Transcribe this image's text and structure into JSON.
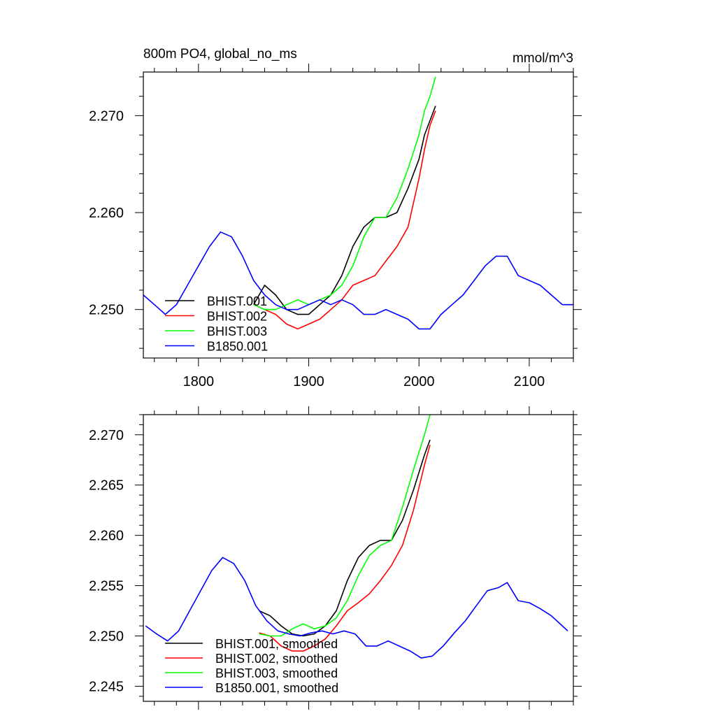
{
  "chart_data": [
    {
      "type": "line",
      "title": "800m PO4, global_no_ms",
      "units": "mmol/m^3",
      "xlim": [
        1750,
        2140
      ],
      "ylim": [
        2.245,
        2.2745
      ],
      "xticks": [
        1800,
        1900,
        2000,
        2100
      ],
      "xtick_labels": [
        "1800",
        "1900",
        "2000",
        "2100"
      ],
      "yticks": [
        2.25,
        2.26,
        2.27
      ],
      "ytick_labels": [
        "2.250",
        "2.260",
        "2.270"
      ],
      "grid": false,
      "legend_position": "bottom-left",
      "series": [
        {
          "name": "BHIST.001",
          "color": "#000000",
          "x": [
            1850,
            1860,
            1870,
            1880,
            1890,
            1900,
            1910,
            1920,
            1930,
            1940,
            1950,
            1960,
            1970,
            1980,
            1990,
            2000,
            2005,
            2010,
            2015
          ],
          "y": [
            2.2505,
            2.2525,
            2.2515,
            2.25,
            2.2495,
            2.2495,
            2.2505,
            2.2515,
            2.2535,
            2.2565,
            2.2585,
            2.2595,
            2.2595,
            2.26,
            2.2625,
            2.2655,
            2.268,
            2.2695,
            2.271
          ]
        },
        {
          "name": "BHIST.002",
          "color": "#ff0000",
          "x": [
            1850,
            1860,
            1870,
            1880,
            1890,
            1900,
            1910,
            1920,
            1930,
            1940,
            1950,
            1960,
            1970,
            1980,
            1990,
            2000,
            2005,
            2010,
            2015
          ],
          "y": [
            2.2505,
            2.25,
            2.2495,
            2.2485,
            2.248,
            2.2485,
            2.249,
            2.25,
            2.251,
            2.2525,
            2.253,
            2.2535,
            2.255,
            2.2565,
            2.2585,
            2.2635,
            2.2665,
            2.269,
            2.2705
          ]
        },
        {
          "name": "BHIST.003",
          "color": "#00ff00",
          "x": [
            1850,
            1860,
            1870,
            1880,
            1890,
            1900,
            1910,
            1920,
            1930,
            1940,
            1950,
            1960,
            1970,
            1980,
            1990,
            2000,
            2005,
            2010,
            2015
          ],
          "y": [
            2.2505,
            2.25,
            2.25,
            2.2505,
            2.251,
            2.2505,
            2.251,
            2.2515,
            2.2525,
            2.2545,
            2.2575,
            2.2595,
            2.2595,
            2.2615,
            2.2645,
            2.268,
            2.2705,
            2.272,
            2.274
          ]
        },
        {
          "name": "B1850.001",
          "color": "#0000ff",
          "x": [
            1750,
            1760,
            1770,
            1780,
            1790,
            1800,
            1810,
            1820,
            1830,
            1840,
            1850,
            1860,
            1870,
            1880,
            1890,
            1900,
            1910,
            1920,
            1930,
            1940,
            1950,
            1960,
            1970,
            1980,
            1990,
            2000,
            2010,
            2020,
            2030,
            2040,
            2050,
            2060,
            2070,
            2080,
            2090,
            2100,
            2110,
            2120,
            2130,
            2140
          ],
          "y": [
            2.2515,
            2.2505,
            2.2495,
            2.2505,
            2.2525,
            2.2545,
            2.2565,
            2.258,
            2.2575,
            2.2555,
            2.253,
            2.2515,
            2.2505,
            2.25,
            2.25,
            2.2505,
            2.251,
            2.2505,
            2.251,
            2.2505,
            2.2495,
            2.2495,
            2.25,
            2.2495,
            2.249,
            2.248,
            2.248,
            2.2495,
            2.2505,
            2.2515,
            2.253,
            2.2545,
            2.2555,
            2.2555,
            2.2535,
            2.253,
            2.2525,
            2.2515,
            2.2505,
            2.2505
          ]
        }
      ]
    },
    {
      "type": "line",
      "title": "",
      "units": "",
      "xlim": [
        1750,
        2140
      ],
      "ylim": [
        2.2435,
        2.272
      ],
      "xticks": [
        1800,
        1900,
        2000,
        2100
      ],
      "xtick_labels": [
        "",
        "",
        "",
        ""
      ],
      "yticks": [
        2.245,
        2.25,
        2.255,
        2.26,
        2.265,
        2.27
      ],
      "ytick_labels": [
        "2.245",
        "2.250",
        "2.255",
        "2.260",
        "2.265",
        "2.270"
      ],
      "grid": false,
      "legend_position": "bottom-left",
      "series": [
        {
          "name": "BHIST.001, smoothed",
          "color": "#000000",
          "x": [
            1855,
            1865,
            1875,
            1885,
            1895,
            1905,
            1915,
            1925,
            1935,
            1945,
            1955,
            1965,
            1975,
            1985,
            1995,
            2005,
            2010
          ],
          "y": [
            2.2525,
            2.252,
            2.251,
            2.2502,
            2.25,
            2.2502,
            2.251,
            2.2525,
            2.2555,
            2.2578,
            2.259,
            2.2595,
            2.2595,
            2.2615,
            2.2645,
            2.268,
            2.2695
          ]
        },
        {
          "name": "BHIST.002, smoothed",
          "color": "#ff0000",
          "x": [
            1855,
            1865,
            1875,
            1885,
            1895,
            1905,
            1915,
            1925,
            1935,
            1945,
            1955,
            1965,
            1975,
            1985,
            1995,
            2005,
            2010
          ],
          "y": [
            2.2503,
            2.25,
            2.249,
            2.2485,
            2.2485,
            2.249,
            2.2497,
            2.251,
            2.2525,
            2.2533,
            2.2542,
            2.2555,
            2.257,
            2.259,
            2.2625,
            2.267,
            2.269
          ]
        },
        {
          "name": "BHIST.003, smoothed",
          "color": "#00ff00",
          "x": [
            1855,
            1865,
            1875,
            1885,
            1895,
            1905,
            1915,
            1925,
            1935,
            1945,
            1955,
            1965,
            1975,
            1985,
            1995,
            2005,
            2010
          ],
          "y": [
            2.2502,
            2.25,
            2.25,
            2.2507,
            2.2512,
            2.2507,
            2.251,
            2.2518,
            2.2535,
            2.256,
            2.258,
            2.259,
            2.2595,
            2.2628,
            2.2665,
            2.27,
            2.272
          ]
        },
        {
          "name": "B1850.001, smoothed",
          "color": "#0000ff",
          "x": [
            1752,
            1762,
            1772,
            1782,
            1792,
            1802,
            1812,
            1822,
            1832,
            1842,
            1852,
            1862,
            1872,
            1882,
            1892,
            1902,
            1912,
            1922,
            1932,
            1942,
            1952,
            1962,
            1972,
            1982,
            1992,
            2002,
            2012,
            2022,
            2032,
            2042,
            2052,
            2062,
            2072,
            2080,
            2090,
            2100,
            2110,
            2120,
            2130,
            2135
          ],
          "y": [
            2.251,
            2.2502,
            2.2495,
            2.2505,
            2.2525,
            2.2545,
            2.2565,
            2.2578,
            2.2572,
            2.2555,
            2.253,
            2.2515,
            2.2505,
            2.2502,
            2.25,
            2.2503,
            2.2505,
            2.2502,
            2.2505,
            2.2502,
            2.249,
            2.249,
            2.2495,
            2.249,
            2.2485,
            2.2478,
            2.248,
            2.249,
            2.2503,
            2.2515,
            2.253,
            2.2545,
            2.2548,
            2.2553,
            2.2535,
            2.2533,
            2.2527,
            2.252,
            2.251,
            2.2505
          ]
        }
      ]
    }
  ]
}
